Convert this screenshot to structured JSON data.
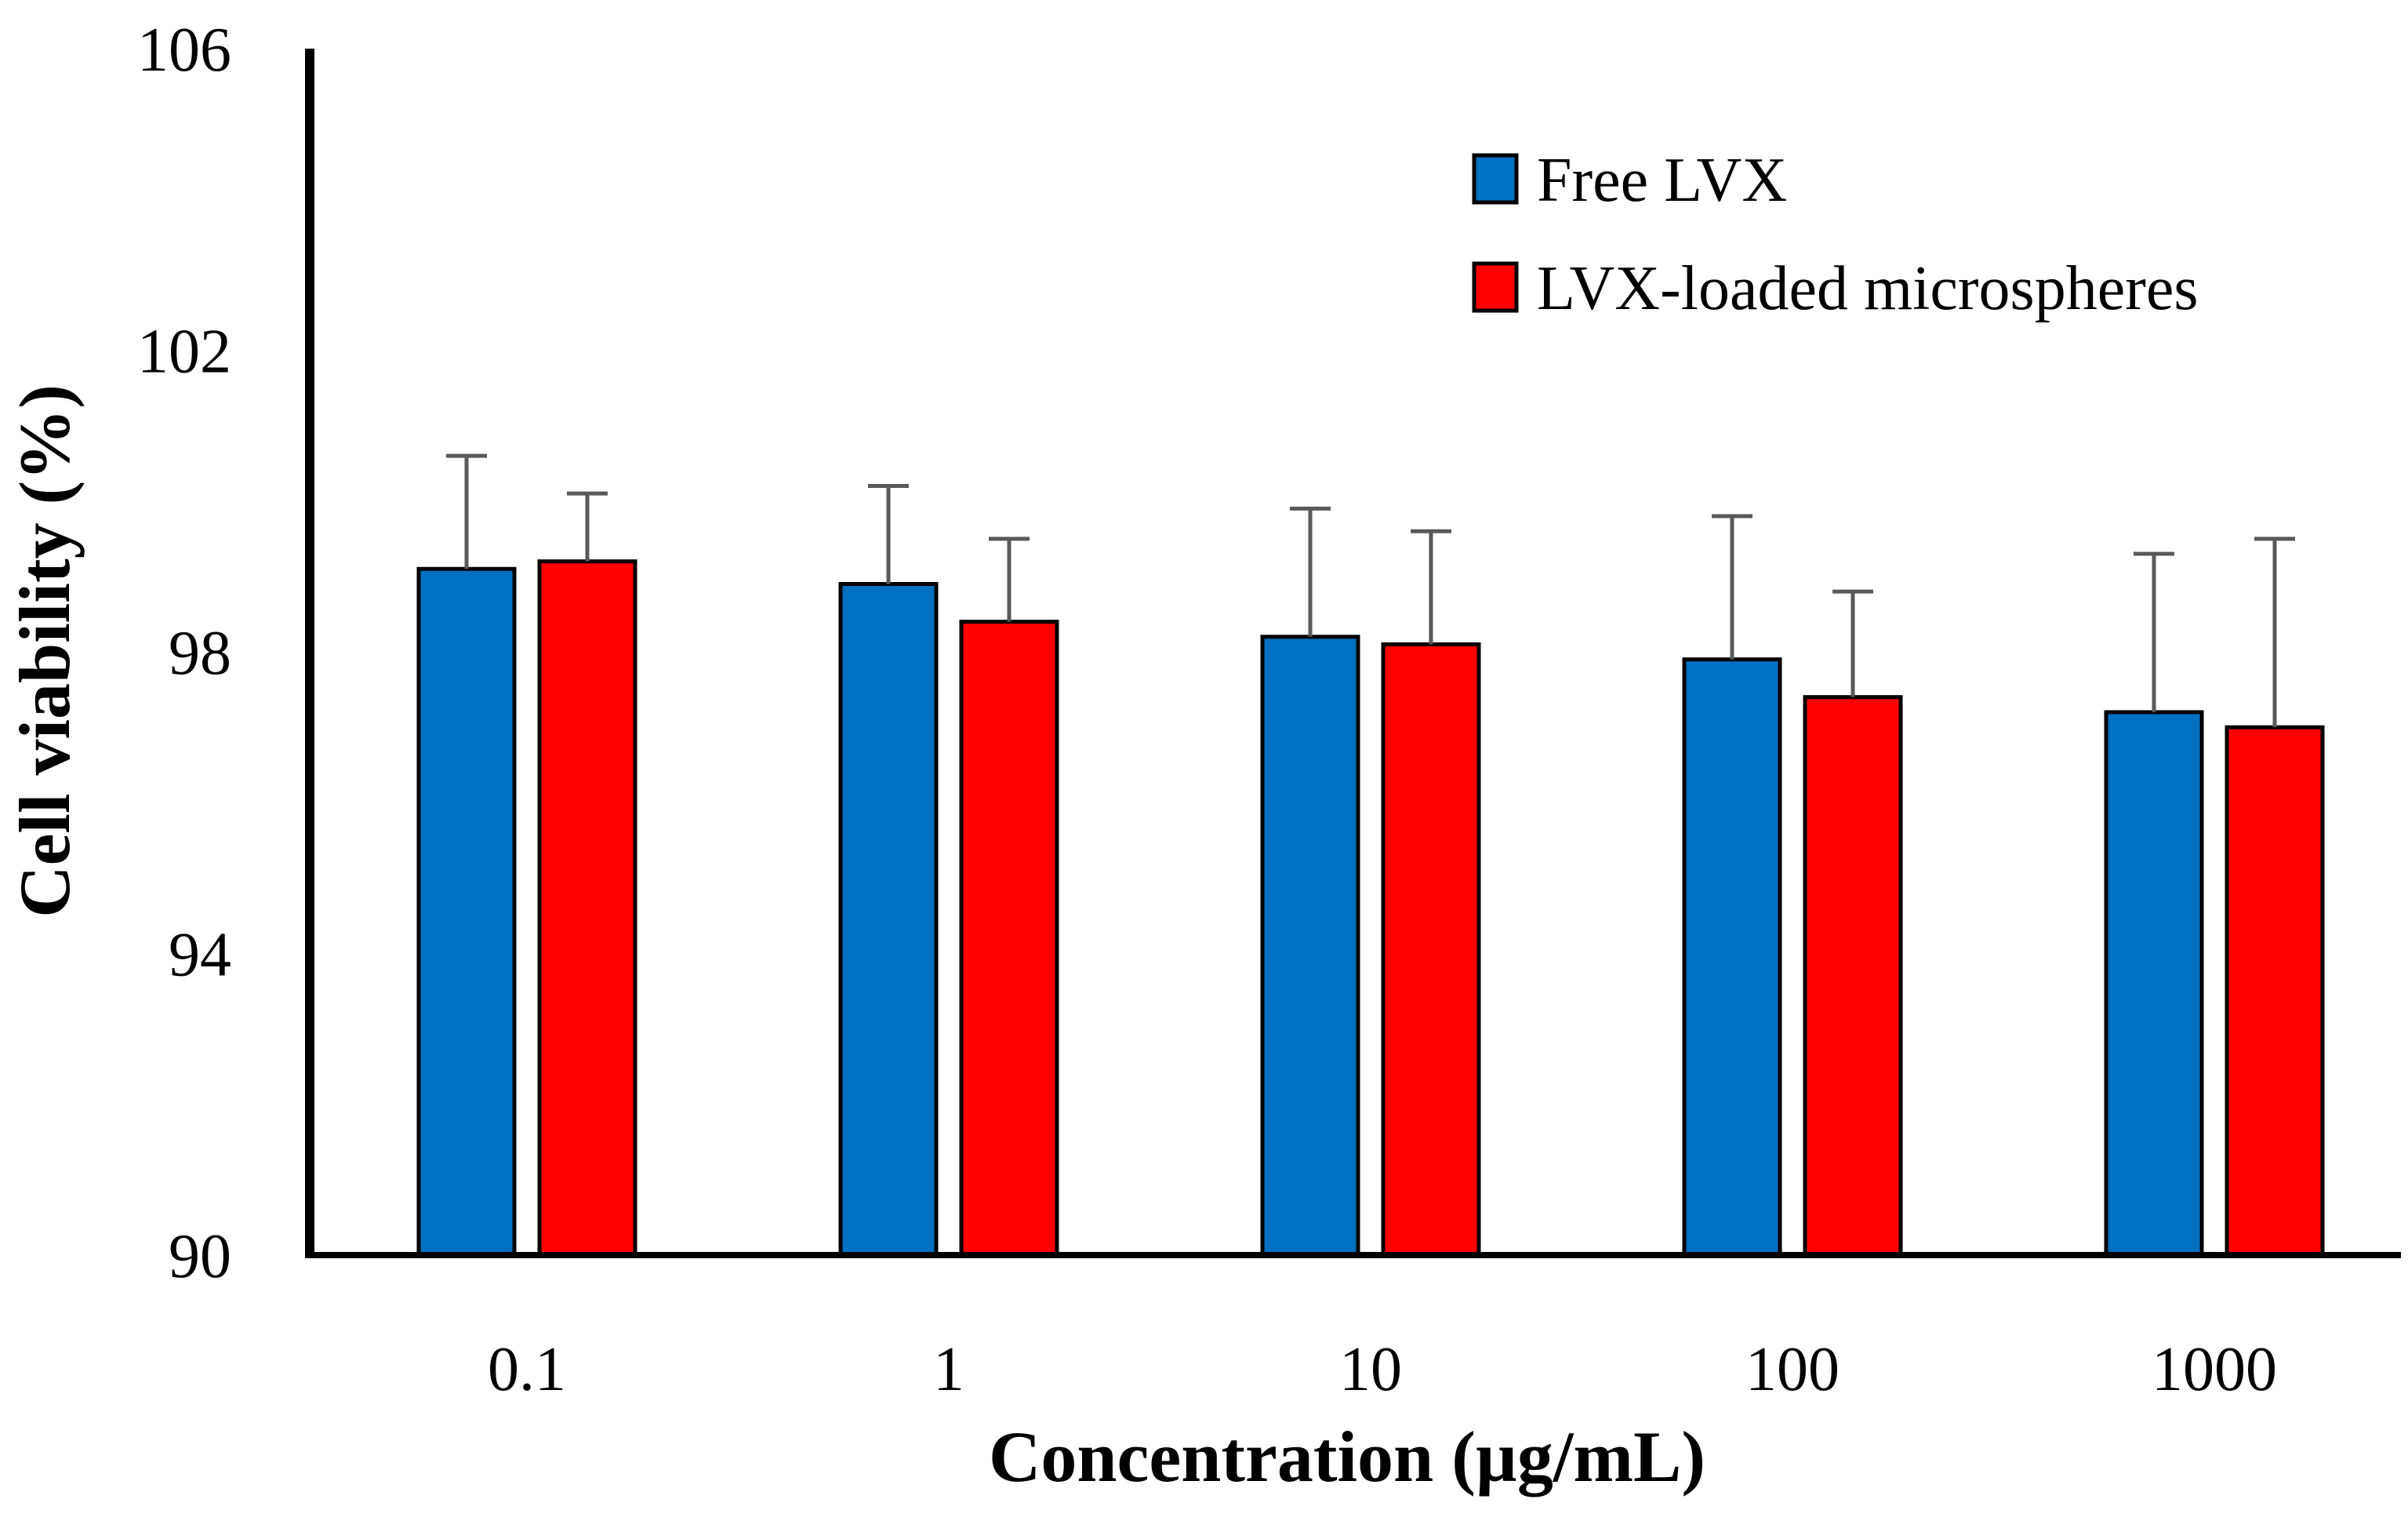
{
  "chart_data": {
    "type": "bar",
    "title": "",
    "xlabel": "Concentration (µg/mL)",
    "ylabel": "Cell viability (%)",
    "categories": [
      "0.1",
      "1",
      "10",
      "100",
      "1000"
    ],
    "ylim": [
      90,
      106
    ],
    "yticks": [
      "90",
      "94",
      "98",
      "102",
      "106"
    ],
    "ytick_values": [
      90,
      94,
      98,
      102,
      106
    ],
    "grid": false,
    "legend_position": "top-right",
    "series": [
      {
        "name": "Free LVX",
        "color": "#0070C0",
        "values": [
          99.1,
          98.9,
          98.2,
          97.9,
          97.2
        ],
        "errors": [
          1.5,
          1.3,
          1.7,
          1.9,
          2.1
        ]
      },
      {
        "name": "LVX-loaded microspheres",
        "color": "#FF0000",
        "values": [
          99.2,
          98.4,
          98.1,
          97.4,
          97.0
        ],
        "errors": [
          0.9,
          1.1,
          1.5,
          1.4,
          2.5
        ]
      }
    ]
  }
}
